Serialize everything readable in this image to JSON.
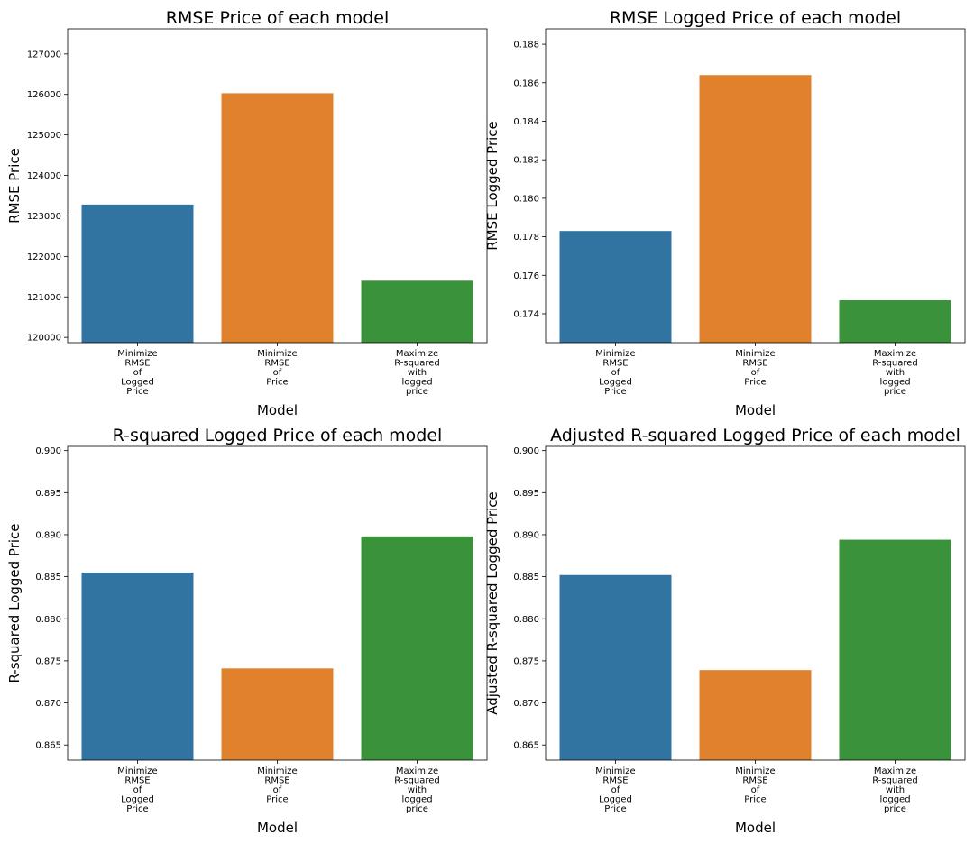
{
  "colors": [
    "#3274a1",
    "#e1812c",
    "#3a923a"
  ],
  "chart_data": [
    {
      "type": "bar",
      "title": "RMSE Price of each model",
      "xlabel": "Model",
      "ylabel": "RMSE Price",
      "categories": [
        [
          "Minimize",
          "RMSE",
          "of",
          "Logged",
          "Price"
        ],
        [
          "Minimize",
          "RMSE",
          "of",
          "Price"
        ],
        [
          "Maximize",
          "R-squared",
          "with",
          "logged",
          "price"
        ]
      ],
      "values": [
        123280,
        126030,
        121400
      ],
      "ylim": [
        119870,
        127620
      ],
      "yticks": [
        120000,
        121000,
        122000,
        123000,
        124000,
        125000,
        126000,
        127000
      ],
      "ytick_labels": [
        "120000",
        "121000",
        "122000",
        "123000",
        "124000",
        "125000",
        "126000",
        "127000"
      ],
      "grid": false
    },
    {
      "type": "bar",
      "title": "RMSE Logged Price of each model",
      "xlabel": "Model",
      "ylabel": "RMSE Logged Price",
      "categories": [
        [
          "Minimize",
          "RMSE",
          "of",
          "Logged",
          "Price"
        ],
        [
          "Minimize",
          "RMSE",
          "of",
          "Price"
        ],
        [
          "Maximize",
          "R-squared",
          "with",
          "logged",
          "price"
        ]
      ],
      "values": [
        0.1783,
        0.1864,
        0.1747
      ],
      "ylim": [
        0.1725,
        0.1888
      ],
      "yticks": [
        0.174,
        0.176,
        0.178,
        0.18,
        0.182,
        0.184,
        0.186,
        0.188
      ],
      "ytick_labels": [
        "0.174",
        "0.176",
        "0.178",
        "0.180",
        "0.182",
        "0.184",
        "0.186",
        "0.188"
      ],
      "grid": false
    },
    {
      "type": "bar",
      "title": "R-squared Logged Price of each model",
      "xlabel": "Model",
      "ylabel": "R-squared Logged Price",
      "categories": [
        [
          "Minimize",
          "RMSE",
          "of",
          "Logged",
          "Price"
        ],
        [
          "Minimize",
          "RMSE",
          "of",
          "Price"
        ],
        [
          "Maximize",
          "R-squared",
          "with",
          "logged",
          "price"
        ]
      ],
      "values": [
        0.8855,
        0.8741,
        0.8898
      ],
      "ylim": [
        0.8632,
        0.9005
      ],
      "yticks": [
        0.865,
        0.87,
        0.875,
        0.88,
        0.885,
        0.89,
        0.895,
        0.9
      ],
      "ytick_labels": [
        "0.865",
        "0.870",
        "0.875",
        "0.880",
        "0.885",
        "0.890",
        "0.895",
        "0.900"
      ],
      "grid": false
    },
    {
      "type": "bar",
      "title": "Adjusted R-squared Logged Price of each model",
      "xlabel": "Model",
      "ylabel": "Adjusted R-squared Logged Price",
      "categories": [
        [
          "Minimize",
          "RMSE",
          "of",
          "Logged",
          "Price"
        ],
        [
          "Minimize",
          "RMSE",
          "of",
          "Price"
        ],
        [
          "Maximize",
          "R-squared",
          "with",
          "logged",
          "price"
        ]
      ],
      "values": [
        0.8852,
        0.8739,
        0.8894
      ],
      "ylim": [
        0.8632,
        0.9005
      ],
      "yticks": [
        0.865,
        0.87,
        0.875,
        0.88,
        0.885,
        0.89,
        0.895,
        0.9
      ],
      "ytick_labels": [
        "0.865",
        "0.870",
        "0.875",
        "0.880",
        "0.885",
        "0.890",
        "0.895",
        "0.900"
      ],
      "grid": false
    }
  ]
}
